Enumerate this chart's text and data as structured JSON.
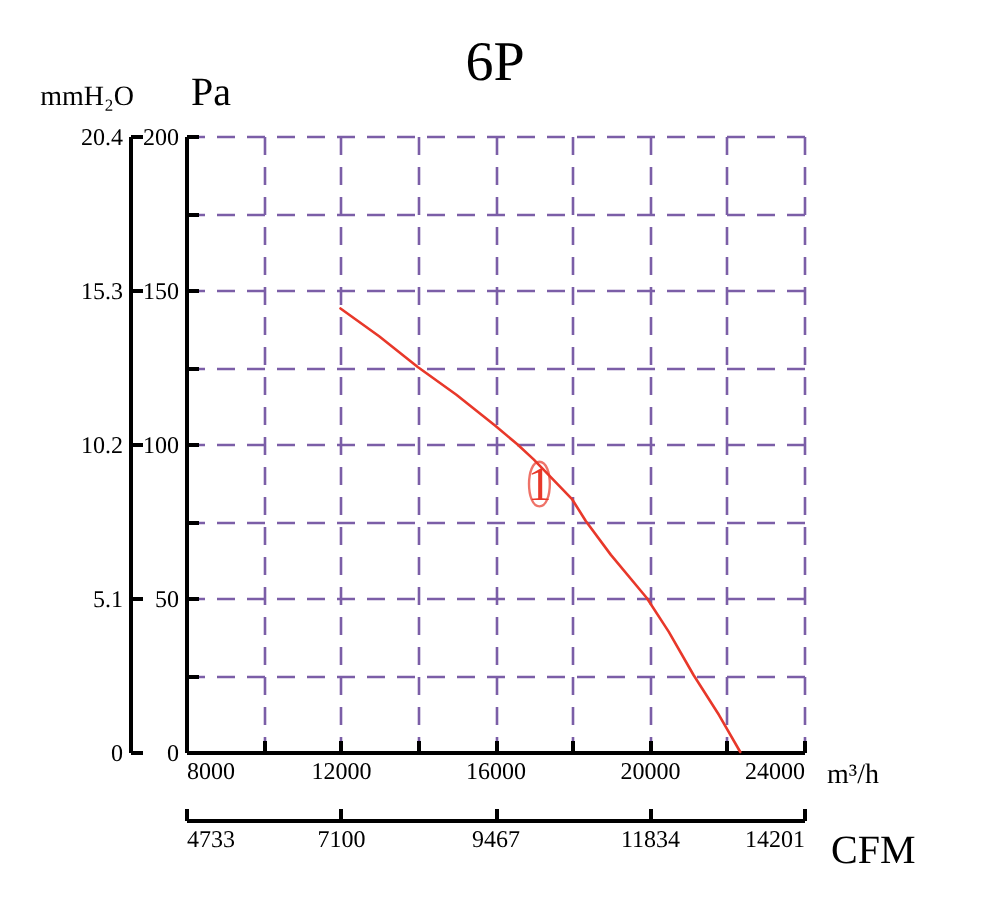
{
  "chart_data": {
    "type": "line",
    "title": "6P",
    "xlabel": "m³/h",
    "ylabel": "Pa",
    "y2label": "mmH₂O",
    "x2label": "CFM",
    "xlim": [
      8000,
      24000
    ],
    "xticks": [
      8000,
      {
        "value": 10000,
        "label": null
      },
      12000,
      {
        "value": 14000,
        "label": null
      },
      16000,
      {
        "value": 18000,
        "label": null
      },
      20000,
      {
        "value": 22000,
        "label": null
      },
      24000
    ],
    "ylim": [
      0,
      200
    ],
    "yticks": [
      0,
      {
        "value": 25,
        "label": null
      },
      50,
      {
        "value": 75,
        "label": null
      },
      100,
      {
        "value": 125,
        "label": null
      },
      150,
      {
        "value": 175,
        "label": null
      },
      200
    ],
    "y2lim": [
      0,
      20.4
    ],
    "y2ticks": [
      0,
      5.1,
      10.2,
      15.3,
      20.4
    ],
    "x2lim": [
      4733,
      14201
    ],
    "x2ticks": [
      4733,
      7100,
      9467,
      11834,
      14201
    ],
    "grid": true,
    "annotations": [
      {
        "text": "1",
        "x": 17150,
        "y": 87
      }
    ],
    "series": [
      {
        "color": "#e8382a",
        "x": [
          12000,
          13000,
          14000,
          15000,
          16000,
          16570,
          17000,
          18000,
          18350,
          19000,
          19930,
          20500,
          21140,
          21800,
          22350
        ],
        "values": [
          144,
          135,
          125,
          116,
          106,
          100,
          95,
          82,
          75,
          64,
          50,
          39,
          25,
          12,
          0
        ]
      }
    ]
  }
}
